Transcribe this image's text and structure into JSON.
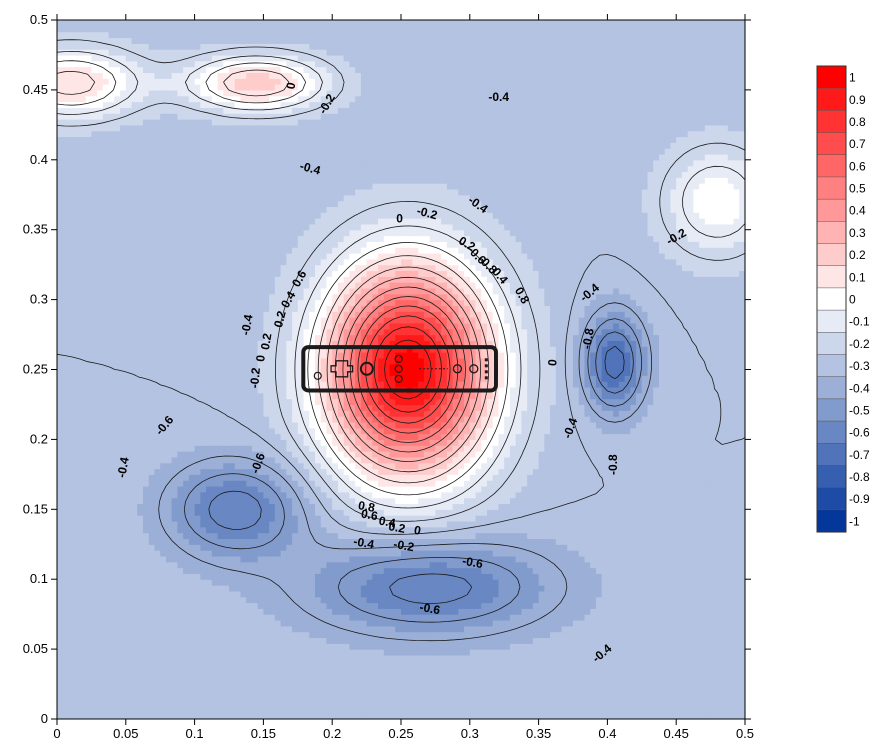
{
  "chart_data": {
    "type": "heatmap",
    "subtype": "filled-contour",
    "title": "",
    "xlabel": "",
    "ylabel": "",
    "xlim": [
      0,
      0.5
    ],
    "ylim": [
      0,
      0.5
    ],
    "grid": false,
    "legend_position": "right",
    "x_ticks": [
      "0",
      "0.05",
      "0.1",
      "0.15",
      "0.2",
      "0.25",
      "0.3",
      "0.35",
      "0.4",
      "0.45",
      "0.5"
    ],
    "y_ticks": [
      "0",
      "0.05",
      "0.1",
      "0.15",
      "0.2",
      "0.25",
      "0.3",
      "0.35",
      "0.4",
      "0.45",
      "0.5"
    ],
    "colorbar": {
      "levels": [
        "1",
        "0.9",
        "0.8",
        "0.7",
        "0.6",
        "0.5",
        "0.4",
        "0.3",
        "0.2",
        "0.1",
        "0",
        "-0.1",
        "-0.2",
        "-0.3",
        "-0.4",
        "-0.5",
        "-0.6",
        "-0.7",
        "-0.8",
        "-0.9",
        "-1"
      ],
      "colors": [
        "#ff0000",
        "#ff1a1a",
        "#ff3333",
        "#ff4d4d",
        "#ff6666",
        "#ff8080",
        "#ff9999",
        "#ffb3b3",
        "#ffcccc",
        "#ffe6e6",
        "#ffffff",
        "#e6ebf5",
        "#cdd7eb",
        "#b4c3e1",
        "#9bafd7",
        "#829bcd",
        "#6987c3",
        "#5073b9",
        "#375faf",
        "#1e4ba5",
        "#05379b"
      ]
    },
    "field": {
      "background_value": -0.3,
      "peaks": [
        {
          "x": 0.255,
          "y": 0.25,
          "value": 1.0,
          "sx": 0.06,
          "sy": 0.075
        },
        {
          "x": 0.405,
          "y": 0.255,
          "value": -0.75,
          "sx": 0.022,
          "sy": 0.035
        },
        {
          "x": 0.13,
          "y": 0.15,
          "value": -0.65,
          "sx": 0.05,
          "sy": 0.035
        },
        {
          "x": 0.27,
          "y": 0.095,
          "value": -0.65,
          "sx": 0.09,
          "sy": 0.035
        },
        {
          "x": 0.01,
          "y": 0.455,
          "value": 0.15,
          "sx": 0.05,
          "sy": 0.025
        },
        {
          "x": 0.145,
          "y": 0.455,
          "value": 0.2,
          "sx": 0.05,
          "sy": 0.02
        },
        {
          "x": 0.48,
          "y": 0.37,
          "value": 0.0,
          "sx": 0.04,
          "sy": 0.04
        }
      ]
    },
    "contour_labels": [
      {
        "text": "0",
        "x": 0.17,
        "y": 0.453,
        "angle": -80
      },
      {
        "text": "-0.2",
        "x": 0.196,
        "y": 0.44,
        "angle": -60
      },
      {
        "text": "-0.4",
        "x": 0.321,
        "y": 0.445,
        "angle": 0
      },
      {
        "text": "-0.4",
        "x": 0.184,
        "y": 0.394,
        "angle": 15
      },
      {
        "text": "-0.2",
        "x": 0.269,
        "y": 0.362,
        "angle": 15
      },
      {
        "text": "0",
        "x": 0.249,
        "y": 0.358,
        "angle": 0
      },
      {
        "text": "-0.4",
        "x": 0.306,
        "y": 0.368,
        "angle": 35
      },
      {
        "text": "0.2",
        "x": 0.298,
        "y": 0.34,
        "angle": 30
      },
      {
        "text": "0.6",
        "x": 0.306,
        "y": 0.331,
        "angle": 45
      },
      {
        "text": "0.8",
        "x": 0.314,
        "y": 0.324,
        "angle": 45
      },
      {
        "text": "0.4",
        "x": 0.322,
        "y": 0.317,
        "angle": 50
      },
      {
        "text": "0.8",
        "x": 0.338,
        "y": 0.303,
        "angle": 60
      },
      {
        "text": "0.6",
        "x": 0.176,
        "y": 0.315,
        "angle": -60
      },
      {
        "text": "0.4",
        "x": 0.168,
        "y": 0.3,
        "angle": -60
      },
      {
        "text": "0.2",
        "x": 0.162,
        "y": 0.286,
        "angle": -75
      },
      {
        "text": "-0.4",
        "x": 0.138,
        "y": 0.282,
        "angle": -80
      },
      {
        "text": "0.2",
        "x": 0.152,
        "y": 0.27,
        "angle": -80
      },
      {
        "text": "0",
        "x": 0.148,
        "y": 0.258,
        "angle": -85
      },
      {
        "text": "-0.2",
        "x": 0.144,
        "y": 0.244,
        "angle": -85
      },
      {
        "text": "0",
        "x": 0.36,
        "y": 0.255,
        "angle": -85
      },
      {
        "text": "-0.8",
        "x": 0.386,
        "y": 0.272,
        "angle": -80
      },
      {
        "text": "-0.4",
        "x": 0.387,
        "y": 0.305,
        "angle": -40
      },
      {
        "text": "-0.2",
        "x": 0.45,
        "y": 0.345,
        "angle": -30
      },
      {
        "text": "-0.4",
        "x": 0.373,
        "y": 0.208,
        "angle": -70
      },
      {
        "text": "-0.8",
        "x": 0.404,
        "y": 0.182,
        "angle": -90
      },
      {
        "text": "-0.6",
        "x": 0.078,
        "y": 0.21,
        "angle": -50
      },
      {
        "text": "-0.6",
        "x": 0.146,
        "y": 0.183,
        "angle": -70
      },
      {
        "text": "-0.4",
        "x": 0.048,
        "y": 0.18,
        "angle": -80
      },
      {
        "text": "0.8",
        "x": 0.225,
        "y": 0.152,
        "angle": 10
      },
      {
        "text": "0.6",
        "x": 0.227,
        "y": 0.146,
        "angle": 10
      },
      {
        "text": "0.4",
        "x": 0.24,
        "y": 0.141,
        "angle": 10
      },
      {
        "text": "0.2",
        "x": 0.247,
        "y": 0.137,
        "angle": 10
      },
      {
        "text": "0",
        "x": 0.262,
        "y": 0.135,
        "angle": 10
      },
      {
        "text": "-0.2",
        "x": 0.252,
        "y": 0.124,
        "angle": 10
      },
      {
        "text": "-0.4",
        "x": 0.223,
        "y": 0.126,
        "angle": 10
      },
      {
        "text": "-0.6",
        "x": 0.302,
        "y": 0.112,
        "angle": 10
      },
      {
        "text": "-0.6",
        "x": 0.271,
        "y": 0.079,
        "angle": 10
      },
      {
        "text": "-0.4",
        "x": 0.396,
        "y": 0.047,
        "angle": -40
      }
    ]
  },
  "overlay": {
    "icon": "wii-remote-icon",
    "x_range": [
      0.179,
      0.319
    ],
    "y_range": [
      0.235,
      0.266
    ]
  }
}
